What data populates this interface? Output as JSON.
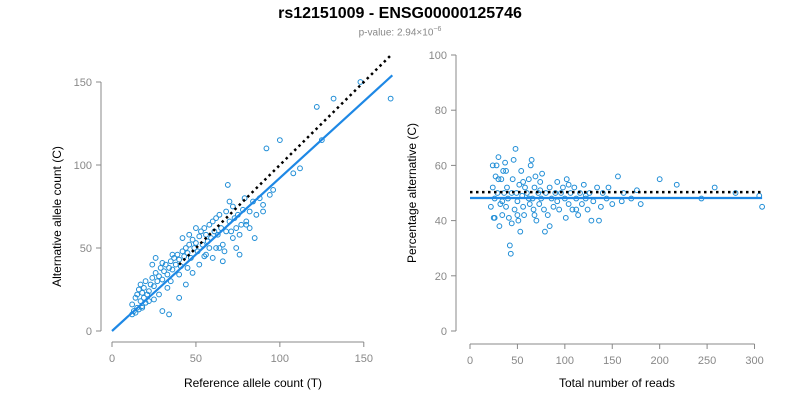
{
  "title": "rs12151009 - ENSG00000125746",
  "subtitle": {
    "prefix": "p-value: 2.94×10",
    "exponent": "−6"
  },
  "chart_data": [
    {
      "type": "scatter",
      "xlabel": "Reference allele count (T)",
      "ylabel": "Alternative allele count (C)",
      "xlim": [
        0,
        168
      ],
      "ylim": [
        0,
        150
      ],
      "xticks": [
        "0",
        "50",
        "100",
        "150"
      ],
      "yticks": [
        "0",
        "50",
        "100",
        "150"
      ],
      "grid": false,
      "point_color": "#1f8dd6",
      "fit_color": "#1e88e5",
      "reference_color": "#000000",
      "fit_line": {
        "x": [
          0,
          167
        ],
        "y": [
          0,
          154
        ]
      },
      "reference_line": {
        "x": [
          40,
          167
        ],
        "y": [
          40,
          167
        ]
      },
      "points": [
        [
          12,
          10
        ],
        [
          13,
          12
        ],
        [
          14,
          11
        ],
        [
          15,
          14
        ],
        [
          16,
          13
        ],
        [
          17,
          18
        ],
        [
          18,
          15
        ],
        [
          19,
          20
        ],
        [
          20,
          17
        ],
        [
          21,
          22
        ],
        [
          12,
          16
        ],
        [
          14,
          20
        ],
        [
          15,
          22
        ],
        [
          16,
          25
        ],
        [
          17,
          28
        ],
        [
          18,
          23
        ],
        [
          19,
          26
        ],
        [
          20,
          30
        ],
        [
          22,
          24
        ],
        [
          23,
          28
        ],
        [
          24,
          32
        ],
        [
          25,
          27
        ],
        [
          26,
          35
        ],
        [
          27,
          30
        ],
        [
          28,
          33
        ],
        [
          29,
          38
        ],
        [
          30,
          31
        ],
        [
          31,
          36
        ],
        [
          32,
          40
        ],
        [
          33,
          34
        ],
        [
          34,
          38
        ],
        [
          35,
          42
        ],
        [
          36,
          37
        ],
        [
          37,
          44
        ],
        [
          38,
          40
        ],
        [
          39,
          46
        ],
        [
          40,
          43
        ],
        [
          41,
          39
        ],
        [
          42,
          48
        ],
        [
          43,
          45
        ],
        [
          44,
          50
        ],
        [
          45,
          47
        ],
        [
          46,
          52
        ],
        [
          47,
          44
        ],
        [
          48,
          55
        ],
        [
          49,
          50
        ],
        [
          50,
          53
        ],
        [
          51,
          48
        ],
        [
          52,
          57
        ],
        [
          53,
          60
        ],
        [
          54,
          52
        ],
        [
          55,
          62
        ],
        [
          56,
          58
        ],
        [
          57,
          54
        ],
        [
          58,
          64
        ],
        [
          59,
          56
        ],
        [
          60,
          66
        ],
        [
          61,
          60
        ],
        [
          62,
          68
        ],
        [
          63,
          58
        ],
        [
          64,
          70
        ],
        [
          65,
          62
        ],
        [
          66,
          52
        ],
        [
          67,
          48
        ],
        [
          68,
          72
        ],
        [
          69,
          88
        ],
        [
          70,
          66
        ],
        [
          71,
          60
        ],
        [
          72,
          75
        ],
        [
          73,
          68
        ],
        [
          74,
          62
        ],
        [
          75,
          70
        ],
        [
          76,
          58
        ],
        [
          77,
          64
        ],
        [
          78,
          73
        ],
        [
          79,
          80
        ],
        [
          80,
          66
        ],
        [
          82,
          62
        ],
        [
          84,
          78
        ],
        [
          85,
          56
        ],
        [
          88,
          80
        ],
        [
          90,
          76
        ],
        [
          92,
          110
        ],
        [
          94,
          82
        ],
        [
          96,
          85
        ],
        [
          100,
          115
        ],
        [
          108,
          95
        ],
        [
          112,
          98
        ],
        [
          122,
          135
        ],
        [
          125,
          115
        ],
        [
          132,
          140
        ],
        [
          148,
          150
        ],
        [
          166,
          140
        ],
        [
          30,
          12
        ],
        [
          34,
          10
        ],
        [
          40,
          20
        ],
        [
          44,
          28
        ],
        [
          48,
          35
        ],
        [
          52,
          40
        ],
        [
          56,
          46
        ],
        [
          60,
          44
        ],
        [
          64,
          50
        ],
        [
          40,
          34
        ],
        [
          35,
          30
        ],
        [
          28,
          22
        ],
        [
          22,
          18
        ],
        [
          18,
          14
        ],
        [
          25,
          19
        ],
        [
          33,
          26
        ],
        [
          45,
          38
        ],
        [
          55,
          45
        ],
        [
          62,
          50
        ],
        [
          72,
          56
        ],
        [
          80,
          64
        ],
        [
          86,
          70
        ],
        [
          90,
          72
        ],
        [
          24,
          40
        ],
        [
          26,
          44
        ],
        [
          30,
          41
        ],
        [
          36,
          46
        ],
        [
          42,
          56
        ],
        [
          46,
          58
        ],
        [
          50,
          62
        ],
        [
          58,
          50
        ],
        [
          68,
          60
        ],
        [
          74,
          50
        ],
        [
          82,
          72
        ],
        [
          70,
          78
        ],
        [
          66,
          42
        ],
        [
          76,
          46
        ]
      ]
    },
    {
      "type": "scatter",
      "xlabel": "Total number of reads",
      "ylabel": "Percentage alternative (C)",
      "xlim": [
        0,
        310
      ],
      "ylim": [
        0,
        100
      ],
      "xticks": [
        "0",
        "50",
        "100",
        "150",
        "200",
        "250",
        "300"
      ],
      "yticks": [
        "0",
        "20",
        "40",
        "60",
        "80",
        "100"
      ],
      "grid": false,
      "point_color": "#1f8dd6",
      "fit_color": "#1e88e5",
      "reference_color": "#000000",
      "fit_line": {
        "x": [
          0,
          308
        ],
        "y": [
          48.2,
          48.2
        ]
      },
      "reference_line": {
        "x": [
          0,
          308
        ],
        "y": [
          50.3,
          50.3
        ]
      },
      "points": [
        [
          22,
          45
        ],
        [
          24,
          52
        ],
        [
          25,
          41
        ],
        [
          26,
          48
        ],
        [
          27,
          56
        ],
        [
          28,
          60
        ],
        [
          29,
          50
        ],
        [
          30,
          63
        ],
        [
          31,
          38
        ],
        [
          32,
          46
        ],
        [
          33,
          55
        ],
        [
          34,
          42
        ],
        [
          35,
          58
        ],
        [
          36,
          50
        ],
        [
          37,
          61
        ],
        [
          38,
          45
        ],
        [
          39,
          52
        ],
        [
          40,
          48
        ],
        [
          41,
          41
        ],
        [
          42,
          31
        ],
        [
          43,
          28
        ],
        [
          44,
          50
        ],
        [
          45,
          55
        ],
        [
          46,
          62
        ],
        [
          47,
          44
        ],
        [
          48,
          66
        ],
        [
          49,
          50
        ],
        [
          50,
          47
        ],
        [
          51,
          40
        ],
        [
          52,
          53
        ],
        [
          53,
          36
        ],
        [
          54,
          58
        ],
        [
          55,
          49
        ],
        [
          56,
          45
        ],
        [
          57,
          42
        ],
        [
          58,
          52
        ],
        [
          60,
          50
        ],
        [
          62,
          55
        ],
        [
          63,
          46
        ],
        [
          64,
          60
        ],
        [
          65,
          62
        ],
        [
          66,
          48
        ],
        [
          67,
          44
        ],
        [
          68,
          52
        ],
        [
          69,
          56
        ],
        [
          70,
          40
        ],
        [
          72,
          50
        ],
        [
          73,
          46
        ],
        [
          74,
          54
        ],
        [
          75,
          48
        ],
        [
          76,
          57
        ],
        [
          78,
          44
        ],
        [
          79,
          36
        ],
        [
          80,
          50
        ],
        [
          82,
          42
        ],
        [
          84,
          52
        ],
        [
          86,
          48
        ],
        [
          88,
          45
        ],
        [
          90,
          50
        ],
        [
          92,
          54
        ],
        [
          94,
          44
        ],
        [
          96,
          50
        ],
        [
          98,
          52
        ],
        [
          100,
          48
        ],
        [
          101,
          41
        ],
        [
          102,
          55
        ],
        [
          104,
          46
        ],
        [
          106,
          50
        ],
        [
          108,
          44
        ],
        [
          110,
          52
        ],
        [
          112,
          48
        ],
        [
          114,
          42
        ],
        [
          116,
          50
        ],
        [
          118,
          46
        ],
        [
          120,
          53
        ],
        [
          122,
          48
        ],
        [
          124,
          44
        ],
        [
          126,
          50
        ],
        [
          128,
          40
        ],
        [
          130,
          47
        ],
        [
          134,
          52
        ],
        [
          138,
          45
        ],
        [
          140,
          50
        ],
        [
          144,
          48
        ],
        [
          150,
          46
        ],
        [
          156,
          56
        ],
        [
          162,
          50
        ],
        [
          170,
          48
        ],
        [
          176,
          51
        ],
        [
          200,
          55
        ],
        [
          218,
          53
        ],
        [
          244,
          48
        ],
        [
          258,
          52
        ],
        [
          280,
          50
        ],
        [
          305,
          49
        ],
        [
          308,
          45
        ],
        [
          24,
          60
        ],
        [
          26,
          41
        ],
        [
          30,
          55
        ],
        [
          34,
          47
        ],
        [
          38,
          58
        ],
        [
          44,
          39
        ],
        [
          50,
          42
        ],
        [
          56,
          54
        ],
        [
          62,
          48
        ],
        [
          68,
          42
        ],
        [
          74,
          51
        ],
        [
          84,
          38
        ],
        [
          92,
          47
        ],
        [
          104,
          53
        ],
        [
          112,
          44
        ],
        [
          122,
          49
        ],
        [
          136,
          40
        ],
        [
          146,
          52
        ],
        [
          160,
          47
        ],
        [
          180,
          46
        ]
      ]
    }
  ]
}
